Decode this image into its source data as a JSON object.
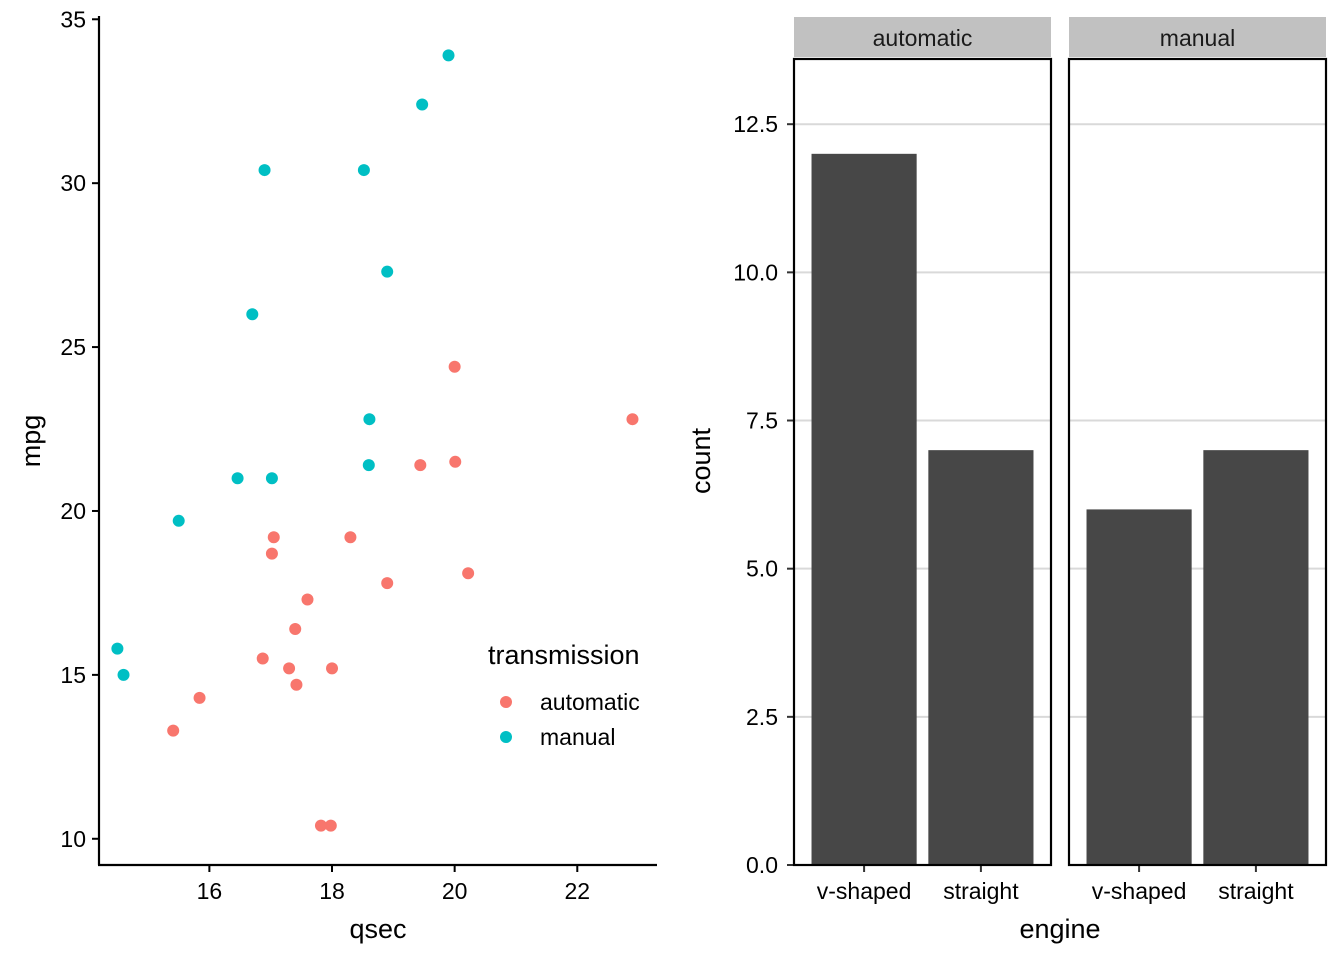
{
  "chart_data": [
    {
      "type": "scatter",
      "title": "",
      "xlabel": "qsec",
      "ylabel": "mpg",
      "xlim": [
        14.2,
        23.3
      ],
      "ylim": [
        9.2,
        35.1
      ],
      "xticks": [
        "16",
        "18",
        "20",
        "22"
      ],
      "yticks": [
        "10",
        "15",
        "20",
        "25",
        "30",
        "35"
      ],
      "grid": false,
      "legend": {
        "title": "transmission",
        "position": "inside-bottom-right",
        "entries": [
          "automatic",
          "manual"
        ]
      },
      "colors": {
        "automatic": "#F8766D",
        "manual": "#00BFC4"
      },
      "series": [
        {
          "name": "automatic",
          "points": [
            [
              20.22,
              18.1
            ],
            [
              19.44,
              21.4
            ],
            [
              17.02,
              18.7
            ],
            [
              15.84,
              14.3
            ],
            [
              20.0,
              24.4
            ],
            [
              22.9,
              22.8
            ],
            [
              18.3,
              19.2
            ],
            [
              18.9,
              17.8
            ],
            [
              17.4,
              16.4
            ],
            [
              17.6,
              17.3
            ],
            [
              18.0,
              15.2
            ],
            [
              17.98,
              10.4
            ],
            [
              17.82,
              10.4
            ],
            [
              17.42,
              14.7
            ],
            [
              20.01,
              21.5
            ],
            [
              16.87,
              15.5
            ],
            [
              17.3,
              15.2
            ],
            [
              15.41,
              13.3
            ],
            [
              17.05,
              19.2
            ]
          ]
        },
        {
          "name": "manual",
          "points": [
            [
              16.46,
              21.0
            ],
            [
              17.02,
              21.0
            ],
            [
              18.61,
              22.8
            ],
            [
              19.47,
              32.4
            ],
            [
              18.52,
              30.4
            ],
            [
              19.9,
              33.9
            ],
            [
              18.9,
              27.3
            ],
            [
              16.7,
              26.0
            ],
            [
              16.9,
              30.4
            ],
            [
              14.5,
              15.8
            ],
            [
              15.5,
              19.7
            ],
            [
              14.6,
              15.0
            ],
            [
              18.6,
              21.4
            ]
          ]
        }
      ]
    },
    {
      "type": "bar",
      "title": "",
      "xlabel": "engine",
      "ylabel": "count",
      "ylim": [
        0,
        13.6
      ],
      "yticks": [
        "0.0",
        "2.5",
        "5.0",
        "7.5",
        "10.0",
        "12.5"
      ],
      "grid": true,
      "bar_color": "#474747",
      "categories": [
        "v-shaped",
        "straight"
      ],
      "facets": [
        {
          "name": "automatic",
          "values": [
            12,
            7
          ]
        },
        {
          "name": "manual",
          "values": [
            6,
            7
          ]
        }
      ]
    }
  ]
}
